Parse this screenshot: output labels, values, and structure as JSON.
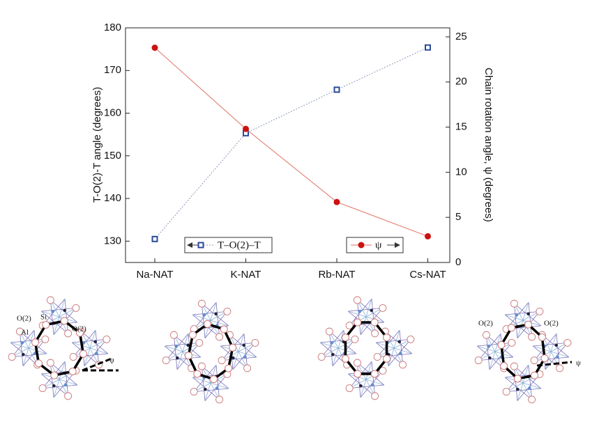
{
  "chart_data": {
    "type": "line",
    "categories": [
      "Na-NAT",
      "K-NAT",
      "Rb-NAT",
      "Cs-NAT"
    ],
    "y_label": "T-O(2)-T angle (degrees)",
    "y2_label": "Chain rotation angle, ψ (degrees)",
    "ylim": [
      125,
      180
    ],
    "yticks": [
      130,
      140,
      150,
      160,
      170,
      180
    ],
    "y2lim": [
      0,
      26
    ],
    "y2ticks": [
      0,
      5,
      10,
      15,
      20,
      25
    ],
    "series": [
      {
        "name": "T–O(2)–T",
        "color": "#2a4a9a",
        "line_color": "#8a98b8",
        "dash": true,
        "marker": "square",
        "values": [
          130.5,
          155.3,
          165.5,
          175.4
        ]
      },
      {
        "name": "ψ",
        "color": "#cc1111",
        "line_color": "#e07060",
        "dash": false,
        "marker": "circle",
        "axis": "y2",
        "values": [
          23.8,
          14.8,
          6.7,
          2.9
        ]
      }
    ]
  },
  "structure_labels": {
    "panel_1": [
      "O(2)",
      "Si",
      "Al",
      "O(2)",
      "ψ"
    ],
    "panel_4": [
      "O(2)",
      "O(2)",
      "ψ"
    ]
  }
}
